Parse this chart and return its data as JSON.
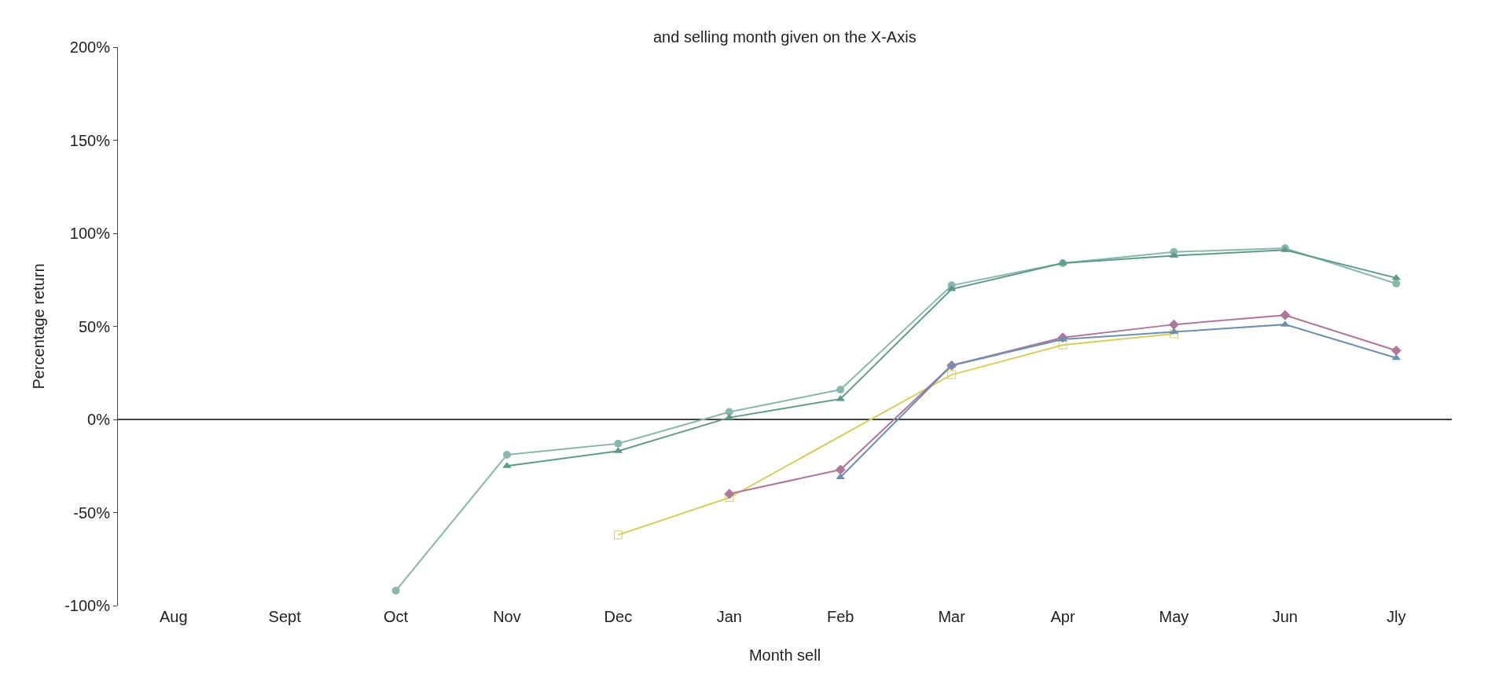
{
  "chart_data": {
    "type": "line",
    "xlabel": "Month sell",
    "ylabel": "Percentage return",
    "annotations": [
      "and selling month given on the X-Axis"
    ],
    "categories": [
      "Aug",
      "Sept",
      "Oct",
      "Nov",
      "Dec",
      "Jan",
      "Feb",
      "Mar",
      "Apr",
      "May",
      "Jun",
      "Jly"
    ],
    "ylim": [
      -100,
      200
    ],
    "yticks": [
      {
        "value": -100,
        "label": "-100%"
      },
      {
        "value": -50,
        "label": "-50%"
      },
      {
        "value": 0,
        "label": "0%"
      },
      {
        "value": 50,
        "label": "50%"
      },
      {
        "value": 100,
        "label": "100%"
      },
      {
        "value": 150,
        "label": "150%"
      },
      {
        "value": 200,
        "label": "200%"
      }
    ],
    "line_style": "solid",
    "series": [
      {
        "color": "#8ab8b0",
        "marker": "circle",
        "values": [
          null,
          null,
          -92,
          -19,
          -13,
          4,
          16,
          72,
          84,
          90,
          92,
          73
        ]
      },
      {
        "color": "#5e9a8c",
        "marker": "triangle",
        "values": [
          null,
          null,
          null,
          -25,
          -17,
          1,
          11,
          70,
          84,
          88,
          91,
          76
        ]
      },
      {
        "color": "#d4d060",
        "marker": "square",
        "values": [
          null,
          null,
          null,
          null,
          -62,
          -42,
          null,
          24,
          40,
          46,
          null,
          null
        ]
      },
      {
        "color": "#b07898",
        "marker": "diamond",
        "values": [
          null,
          null,
          null,
          null,
          null,
          -40,
          -27,
          29,
          44,
          51,
          56,
          37
        ]
      },
      {
        "color": "#6f8fb0",
        "marker": "triangle",
        "values": [
          null,
          null,
          null,
          null,
          null,
          null,
          -31,
          29,
          43,
          47,
          51,
          33
        ]
      }
    ]
  }
}
